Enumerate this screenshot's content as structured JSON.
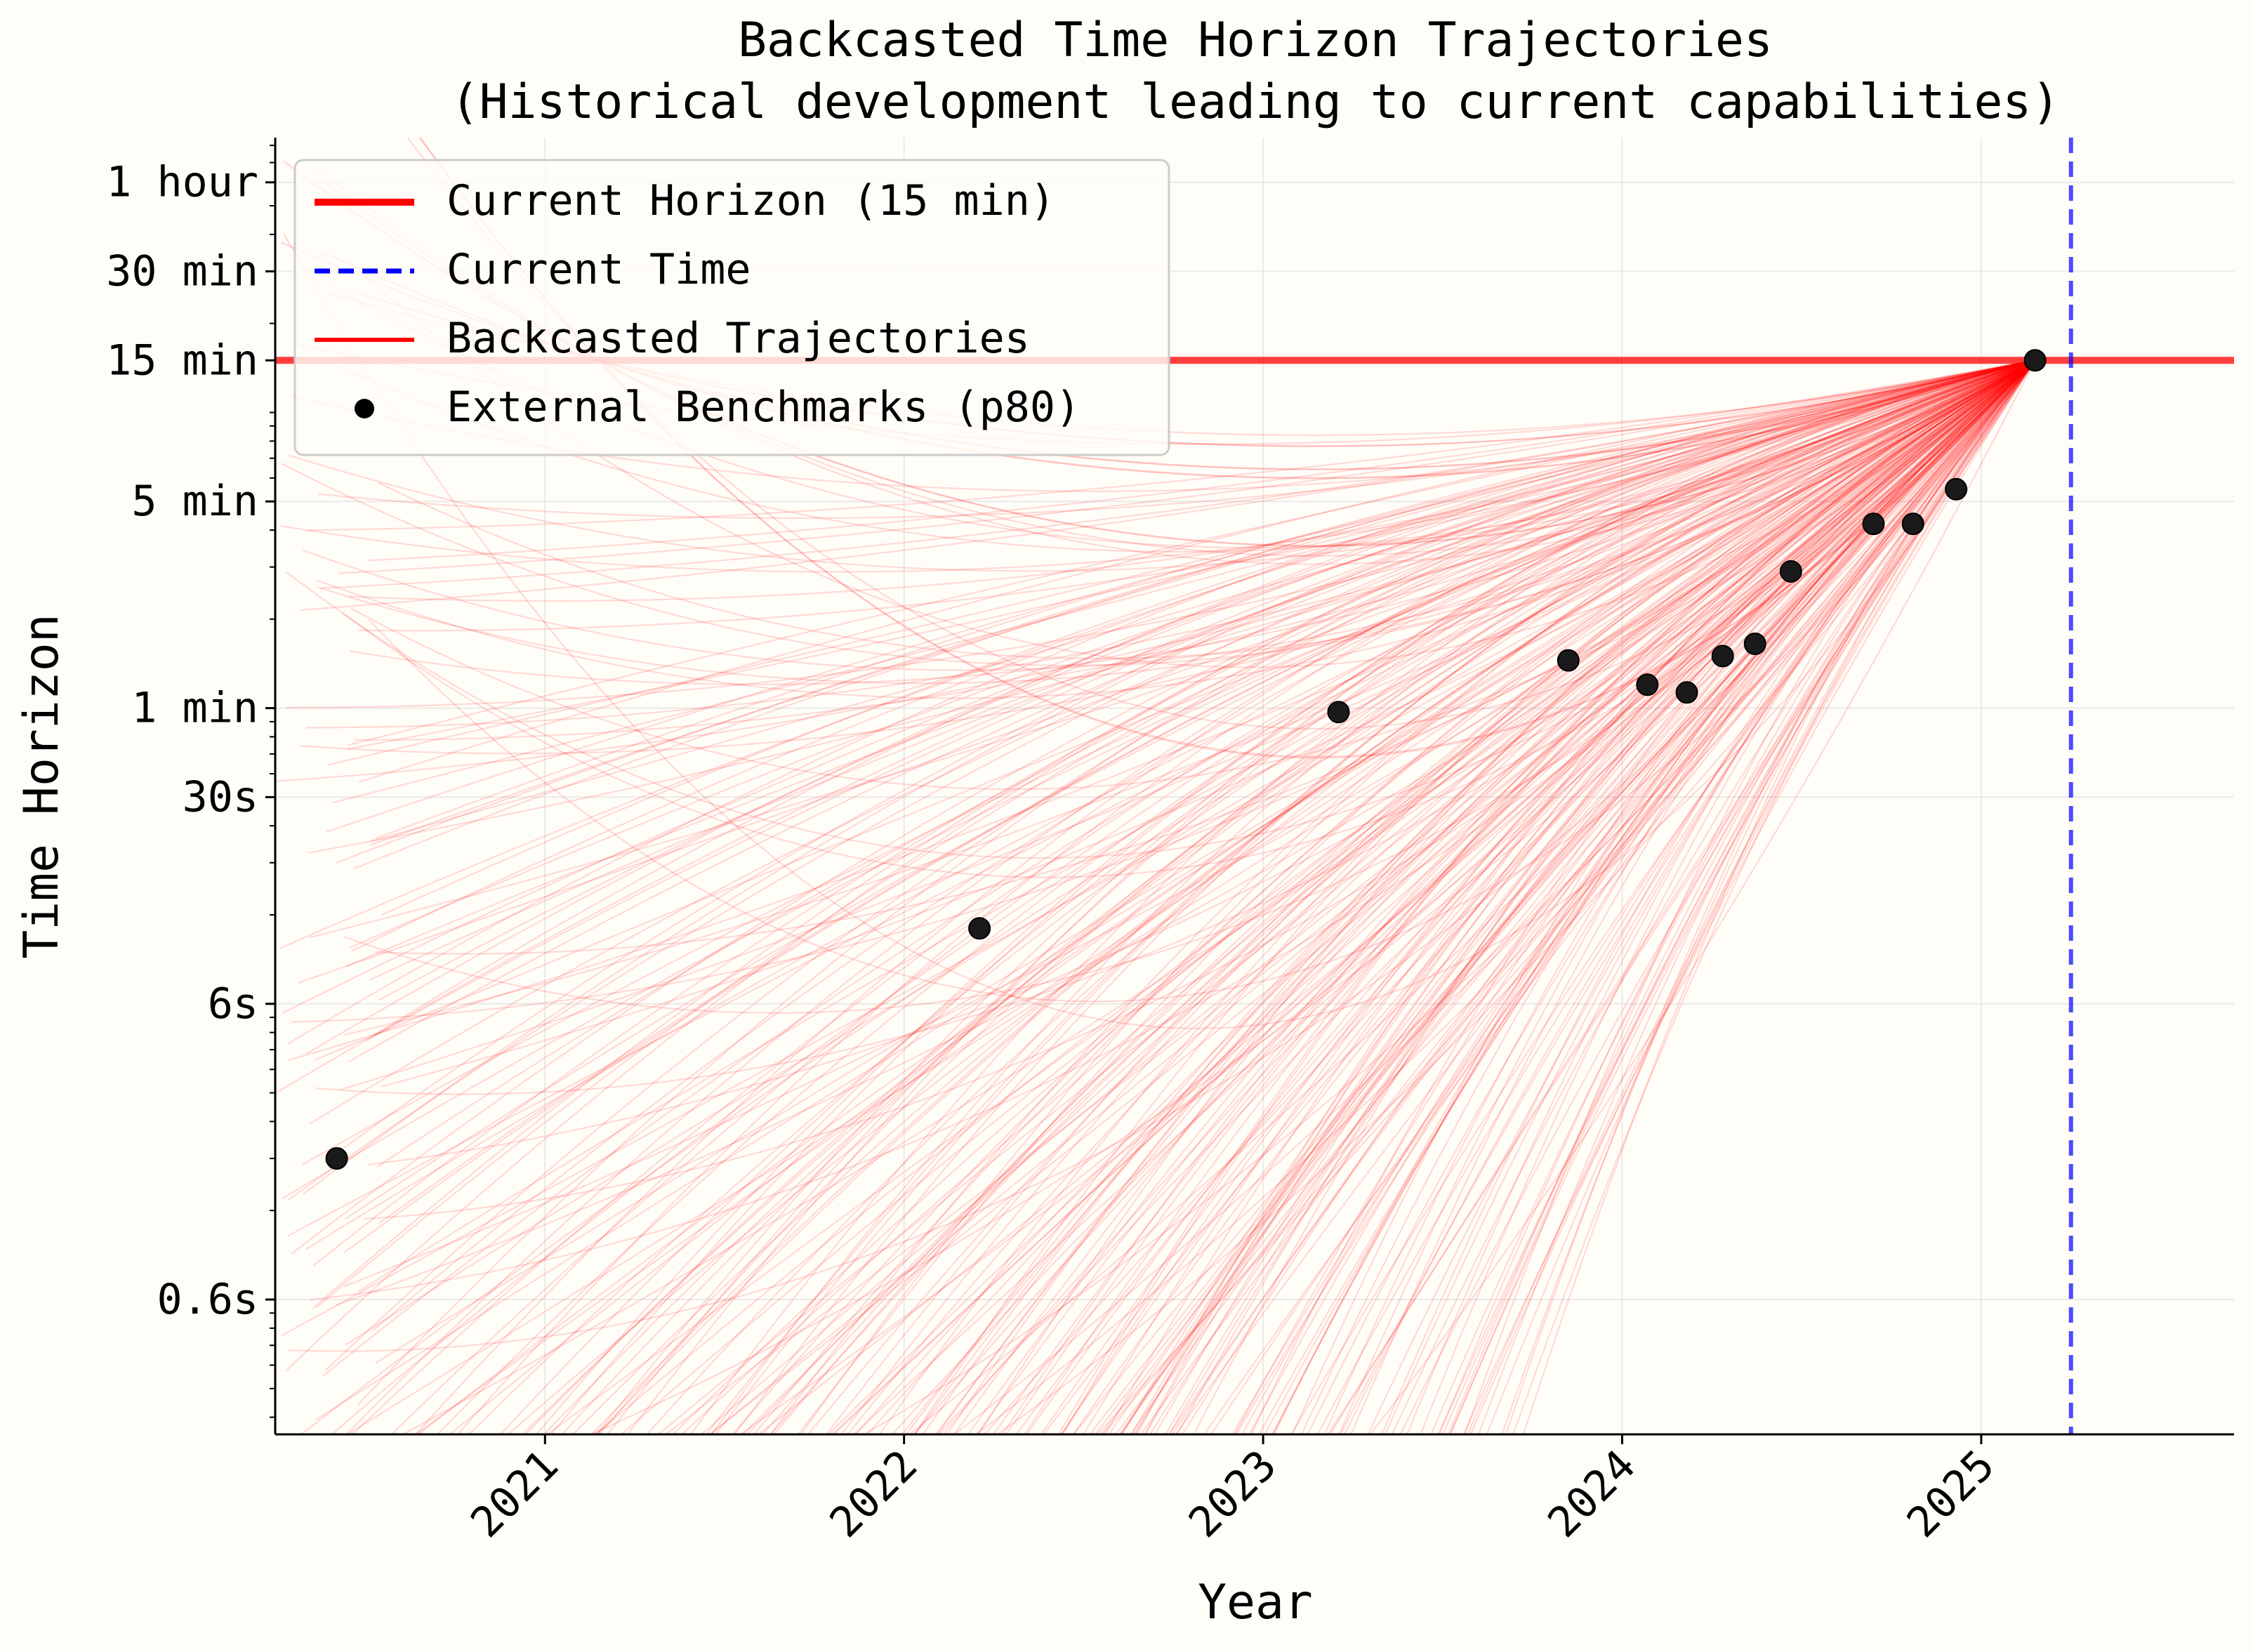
{
  "colors": {
    "background": "#fffdf8",
    "current_horizon": "#ff0000",
    "current_time": "#0000ff",
    "trajectory": "#ff0000",
    "benchmark": "#000000"
  },
  "chart_data": {
    "type": "line",
    "title_line1": "Backcasted Time Horizon Trajectories",
    "title_line2": "(Historical development leading to current capabilities)",
    "xlabel": "Year",
    "ylabel": "Time Horizon",
    "x_scale": "date",
    "y_scale": "log",
    "xlim": [
      "2020-04-01",
      "2025-09-15"
    ],
    "ylim_minutes": [
      0.0035,
      85
    ],
    "grid": true,
    "legend_placement": "top-left",
    "x_ticks": [
      {
        "value": 2021,
        "label": "2021"
      },
      {
        "value": 2022,
        "label": "2022"
      },
      {
        "value": 2023,
        "label": "2023"
      },
      {
        "value": 2024,
        "label": "2024"
      },
      {
        "value": 2025,
        "label": "2025"
      }
    ],
    "y_ticks": [
      {
        "minutes": 0.01,
        "label": "0.6s"
      },
      {
        "minutes": 0.1,
        "label": "6s"
      },
      {
        "minutes": 0.5,
        "label": "30s"
      },
      {
        "minutes": 1,
        "label": "1 min"
      },
      {
        "minutes": 5,
        "label": "5 min"
      },
      {
        "minutes": 15,
        "label": "15 min"
      },
      {
        "minutes": 30,
        "label": "30 min"
      },
      {
        "minutes": 60,
        "label": "1 hour"
      }
    ],
    "legend": [
      {
        "label": "Current Horizon (15 min)",
        "style": "thick-line"
      },
      {
        "label": "Current Time",
        "style": "dashed-line"
      },
      {
        "label": "Backcasted Trajectories",
        "style": "line"
      },
      {
        "label": "External Benchmarks (p80)",
        "style": "dot"
      }
    ],
    "current_horizon_minutes": 15,
    "current_time": 2025.25,
    "trajectory_origin": {
      "x": 2025.15,
      "minutes": 15
    },
    "trajectory_count": 300,
    "benchmarks": [
      {
        "x": 2020.42,
        "minutes": 0.03
      },
      {
        "x": 2022.21,
        "minutes": 0.18
      },
      {
        "x": 2023.21,
        "minutes": 0.97
      },
      {
        "x": 2023.85,
        "minutes": 1.45
      },
      {
        "x": 2024.07,
        "minutes": 1.2
      },
      {
        "x": 2024.18,
        "minutes": 1.13
      },
      {
        "x": 2024.28,
        "minutes": 1.5
      },
      {
        "x": 2024.37,
        "minutes": 1.65
      },
      {
        "x": 2024.47,
        "minutes": 2.9
      },
      {
        "x": 2024.7,
        "minutes": 4.2
      },
      {
        "x": 2024.81,
        "minutes": 4.2
      },
      {
        "x": 2024.93,
        "minutes": 5.5
      },
      {
        "x": 2025.15,
        "minutes": 15
      }
    ]
  }
}
